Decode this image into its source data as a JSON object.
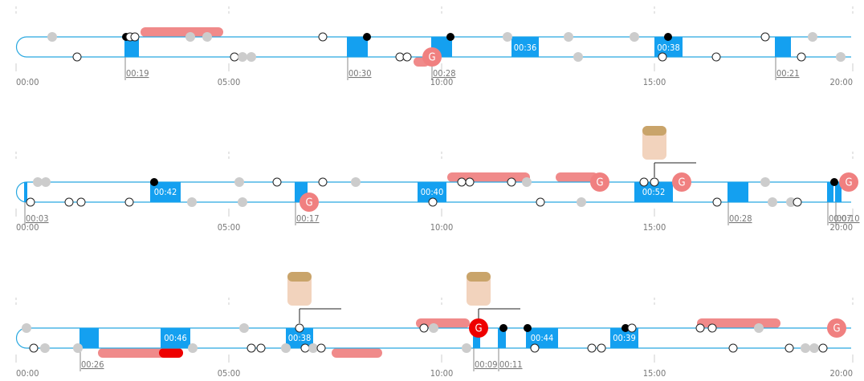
{
  "periods": [
    {
      "ticks": [
        "00:00",
        "05:00",
        "10:00",
        "15:00",
        "20:00"
      ],
      "shifts": [
        "00:19",
        "00:30",
        "00:28",
        "00:36",
        "00:38",
        "00:21"
      ],
      "goals": [
        "G"
      ]
    },
    {
      "ticks": [
        "00:00",
        "05:00",
        "10:00",
        "15:00",
        "20:00"
      ],
      "shifts": [
        "00:03",
        "00:42",
        "00:17",
        "00:40",
        "00:52",
        "00:28",
        "00:07",
        "00:10"
      ],
      "goals": [
        "G",
        "G",
        "G",
        "G"
      ]
    },
    {
      "ticks": [
        "00:00",
        "05:00",
        "10:00",
        "15:00",
        "20:00"
      ],
      "shifts": [
        "00:26",
        "00:46",
        "00:38",
        "00:09",
        "00:11",
        "00:44",
        "00:39"
      ],
      "goals": [
        "G",
        "G"
      ]
    }
  ]
}
